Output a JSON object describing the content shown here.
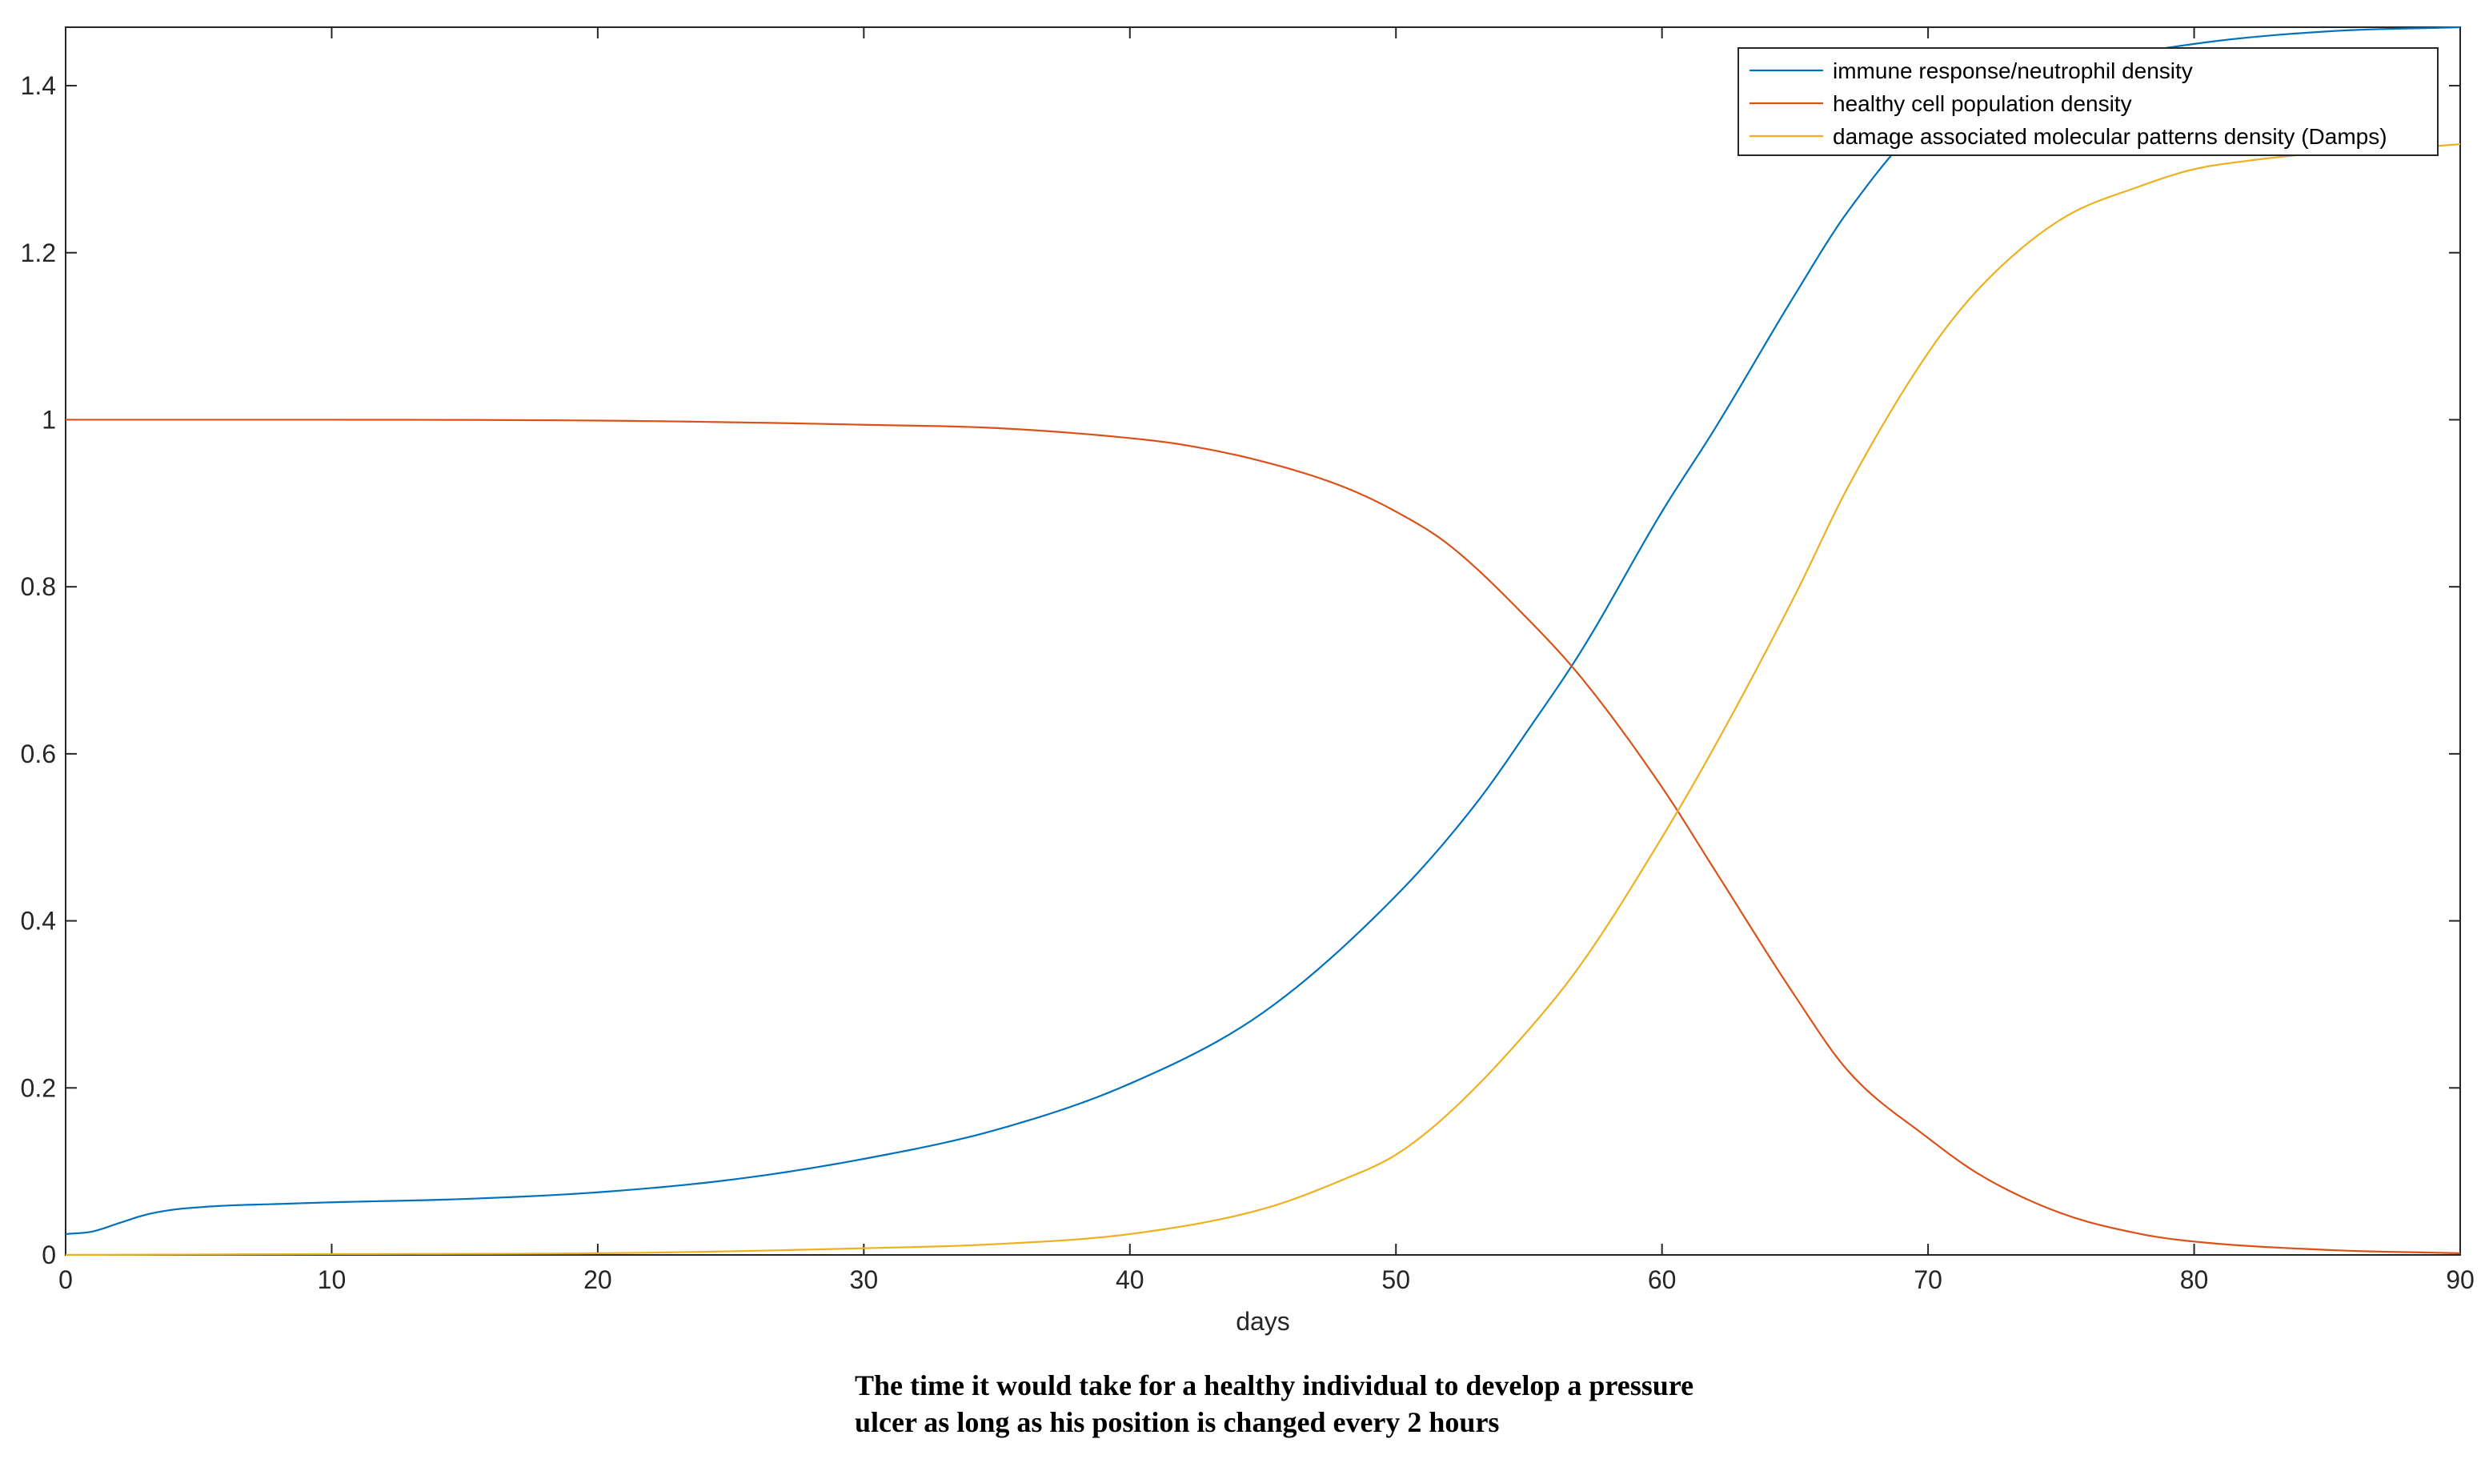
{
  "chart_data": {
    "type": "line",
    "title": "",
    "xlabel": "days",
    "ylabel": "",
    "xlim": [
      0,
      90
    ],
    "ylim": [
      0,
      1.47
    ],
    "xticks": [
      0,
      10,
      20,
      30,
      40,
      50,
      60,
      70,
      80,
      90
    ],
    "xtick_labels": [
      "0",
      "10",
      "20",
      "30",
      "40",
      "50",
      "60",
      "70",
      "80",
      "90"
    ],
    "yticks": [
      0,
      0.2,
      0.4,
      0.6,
      0.8,
      1,
      1.2,
      1.4
    ],
    "ytick_labels": [
      "0",
      "0.2",
      "0.4",
      "0.6",
      "0.8",
      "1",
      "1.2",
      "1.4"
    ],
    "grid": false,
    "legend_position": "top-right",
    "series": [
      {
        "name": "immune response/neutrophil density",
        "color": "#0072BD",
        "x": [
          0,
          1,
          2,
          3,
          4,
          5,
          6,
          8,
          10,
          15,
          20,
          25,
          30,
          35,
          40,
          45,
          50,
          53,
          55,
          57,
          60,
          62,
          65,
          67,
          70,
          75,
          80,
          85,
          90
        ],
        "y": [
          0.025,
          0.028,
          0.038,
          0.048,
          0.054,
          0.057,
          0.059,
          0.061,
          0.063,
          0.067,
          0.075,
          0.09,
          0.115,
          0.15,
          0.205,
          0.29,
          0.43,
          0.54,
          0.63,
          0.725,
          0.89,
          0.99,
          1.15,
          1.25,
          1.36,
          1.42,
          1.45,
          1.465,
          1.47
        ]
      },
      {
        "name": "healthy cell population density",
        "color": "#D95319",
        "x": [
          0,
          10,
          20,
          25,
          30,
          35,
          40,
          42,
          45,
          48,
          50,
          52,
          55,
          57,
          60,
          62,
          65,
          67,
          70,
          72,
          75,
          78,
          80,
          85,
          90
        ],
        "y": [
          1.0,
          1.0,
          0.999,
          0.997,
          0.994,
          0.99,
          0.978,
          0.97,
          0.95,
          0.92,
          0.89,
          0.85,
          0.76,
          0.69,
          0.56,
          0.46,
          0.31,
          0.22,
          0.14,
          0.095,
          0.05,
          0.025,
          0.016,
          0.006,
          0.002
        ]
      },
      {
        "name": "damage associated molecular patterns density (Damps)",
        "color": "#EDB120",
        "x": [
          0,
          10,
          20,
          30,
          35,
          40,
          45,
          48,
          50,
          52,
          55,
          57,
          60,
          62,
          65,
          67,
          70,
          72,
          75,
          78,
          80,
          82,
          85,
          88,
          90
        ],
        "y": [
          0,
          0.001,
          0.002,
          0.008,
          0.013,
          0.025,
          0.055,
          0.09,
          0.12,
          0.17,
          0.27,
          0.35,
          0.5,
          0.61,
          0.79,
          0.92,
          1.08,
          1.16,
          1.24,
          1.28,
          1.3,
          1.31,
          1.32,
          1.325,
          1.33
        ]
      }
    ]
  },
  "caption": {
    "line1": "The time it would take for a healthy individual to develop a pressure",
    "line2": "ulcer as long as his position is changed every 2 hours"
  }
}
